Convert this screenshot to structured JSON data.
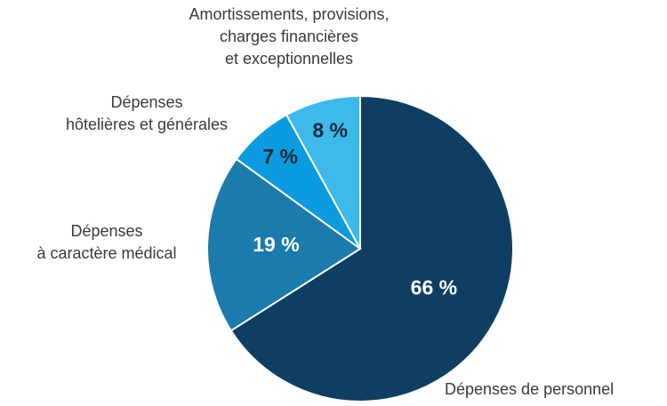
{
  "chart_data": {
    "type": "pie",
    "categories": [
      "Dépenses de personnel",
      "Dépenses\nà caractère médical",
      "Dépenses\nhôtelières et générales",
      "Amortissements, provisions,\ncharges financières\net exceptionnelles"
    ],
    "values": [
      66,
      19,
      7,
      8
    ],
    "value_labels": [
      "66 %",
      "19 %",
      "7 %",
      "8 %"
    ],
    "colors": [
      "#0e3f63",
      "#1b7bad",
      "#0b9be0",
      "#3db9ec"
    ]
  }
}
